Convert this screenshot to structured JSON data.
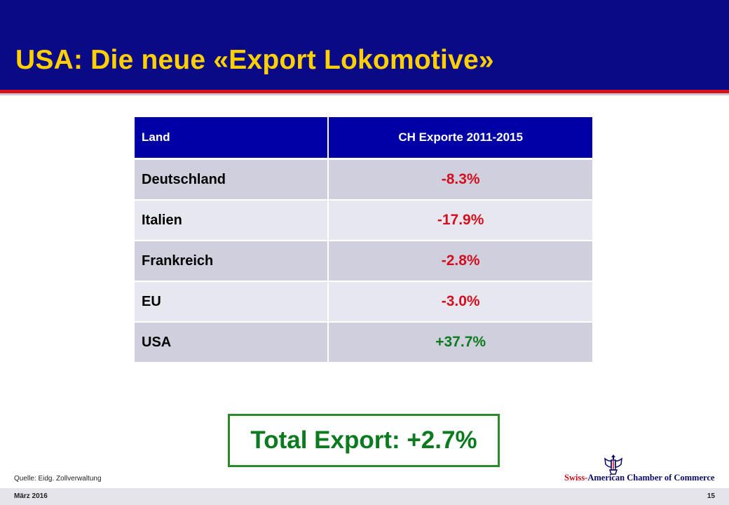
{
  "slide": {
    "title": "USA: Die neue «Export Lokomotive»"
  },
  "table": {
    "headers": [
      "Land",
      "CH Exporte 2011-2015"
    ],
    "rows": [
      {
        "land": "Deutschland",
        "value": "-8.3%"
      },
      {
        "land": "Italien",
        "value": "-17.9%"
      },
      {
        "land": "Frankreich",
        "value": "-2.8%"
      },
      {
        "land": "EU",
        "value": "-3.0%"
      },
      {
        "land": "USA",
        "value": "+37.7%"
      }
    ]
  },
  "total": {
    "text": "Total Export: +2.7%"
  },
  "source": "Quelle: Eidg. Zollverwaltung",
  "logo": {
    "part_red": "Swiss-",
    "part_blue": "American Chamber of Commerce",
    "icon": "eagle-crest-icon"
  },
  "footer": {
    "date": "März 2016",
    "page": "15"
  },
  "colors": {
    "header_bg": "#0a0a86",
    "title": "#ffd000",
    "accent_red": "#d8111b",
    "negative": "#d10f1f",
    "positive": "#0a7b1e"
  }
}
